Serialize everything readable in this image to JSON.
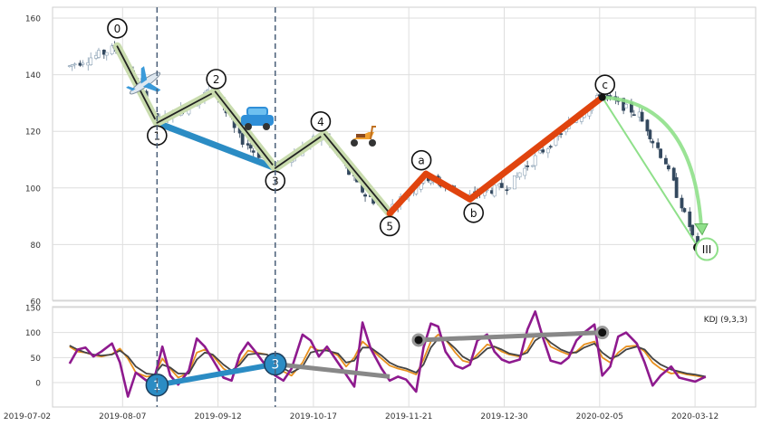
{
  "chart_data": [
    {
      "type": "candlestick",
      "title": "",
      "xlabel": "",
      "ylabel": "",
      "ylim": [
        60,
        165
      ],
      "y_ticks": [
        "60",
        "80",
        "100",
        "120",
        "140",
        "160"
      ],
      "grid": true,
      "legend": "none",
      "candles_approx": [
        {
          "date": "2019-07-18",
          "close": 143
        },
        {
          "date": "2019-08-01",
          "close": 148
        },
        {
          "date": "2019-08-05",
          "close": 150
        },
        {
          "date": "2019-08-12",
          "close": 138
        },
        {
          "date": "2019-08-20",
          "close": 123
        },
        {
          "date": "2019-09-03",
          "close": 130
        },
        {
          "date": "2019-09-11",
          "close": 136
        },
        {
          "date": "2019-09-20",
          "close": 118
        },
        {
          "date": "2019-10-03",
          "close": 107
        },
        {
          "date": "2019-10-15",
          "close": 115
        },
        {
          "date": "2019-10-21",
          "close": 119
        },
        {
          "date": "2019-11-05",
          "close": 98
        },
        {
          "date": "2019-11-14",
          "close": 92
        },
        {
          "date": "2019-11-28",
          "close": 104
        },
        {
          "date": "2019-12-16",
          "close": 97
        },
        {
          "date": "2020-01-01",
          "close": 101
        },
        {
          "date": "2020-01-20",
          "close": 118
        },
        {
          "date": "2020-02-06",
          "close": 133
        },
        {
          "date": "2020-02-20",
          "close": 126
        },
        {
          "date": "2020-03-01",
          "close": 110
        },
        {
          "date": "2020-03-13",
          "close": 79
        }
      ],
      "wave_points": [
        {
          "label": "0",
          "date": "2019-08-05",
          "price": 150
        },
        {
          "label": "1",
          "date": "2019-08-20",
          "price": 123
        },
        {
          "label": "2",
          "date": "2019-09-11",
          "price": 134
        },
        {
          "label": "3",
          "date": "2019-10-03",
          "price": 107
        },
        {
          "label": "4",
          "date": "2019-10-21",
          "price": 119
        },
        {
          "label": "5",
          "date": "2019-11-14",
          "price": 91
        },
        {
          "label": "a",
          "date": "2019-11-28",
          "price": 105
        },
        {
          "label": "b",
          "date": "2019-12-16",
          "price": 96
        },
        {
          "label": "c",
          "date": "2020-02-06",
          "price": 132
        },
        {
          "label": "III",
          "date": "2020-03-13",
          "price": 79
        }
      ],
      "divergence_line": {
        "from": {
          "date": "2019-08-20",
          "price": 123
        },
        "to": {
          "date": "2019-10-03",
          "price": 107
        },
        "color": "#2b8cc4"
      },
      "abc_color": "#e0440e",
      "arrow_color": "#8fe08a",
      "vlines": [
        "2019-08-20",
        "2019-10-03"
      ]
    },
    {
      "type": "line",
      "indicator_label": "KDJ (9,3,3)",
      "ylim": [
        -30,
        150
      ],
      "y_ticks": [
        "0",
        "50",
        "100",
        "150"
      ],
      "grid": true,
      "series": [
        {
          "color": "#e8901e",
          "values": [
            72,
            62,
            60,
            55,
            52,
            57,
            68,
            48,
            20,
            12,
            14,
            48,
            28,
            10,
            20,
            60,
            66,
            54,
            28,
            18,
            42,
            64,
            60,
            56,
            32,
            22,
            14,
            40,
            72,
            64,
            66,
            54,
            32,
            50,
            82,
            68,
            48,
            34,
            28,
            24,
            16,
            46,
            82,
            96,
            86,
            60,
            44,
            40,
            56,
            76,
            72,
            62,
            56,
            52,
            66,
            96,
            98,
            72,
            62,
            56,
            62,
            76,
            82,
            50,
            40,
            60,
            72,
            74,
            62,
            40,
            28,
            18,
            20,
            16,
            14,
            10
          ]
        },
        {
          "color": "#444444",
          "values": [
            74,
            66,
            60,
            56,
            54,
            56,
            64,
            52,
            32,
            18,
            16,
            36,
            30,
            18,
            18,
            46,
            60,
            56,
            36,
            24,
            36,
            56,
            58,
            56,
            40,
            28,
            20,
            32,
            60,
            64,
            64,
            58,
            40,
            44,
            70,
            70,
            54,
            40,
            32,
            28,
            20,
            36,
            70,
            88,
            86,
            68,
            52,
            44,
            50,
            68,
            72,
            66,
            58,
            54,
            60,
            84,
            94,
            80,
            66,
            60,
            60,
            70,
            78,
            60,
            48,
            54,
            66,
            72,
            66,
            48,
            36,
            26,
            22,
            18,
            16,
            12
          ]
        },
        {
          "color": "#8e1a8e",
          "values": [
            38,
            66,
            70,
            52,
            62,
            78,
            40,
            -28,
            20,
            4,
            8,
            72,
            14,
            -4,
            24,
            88,
            72,
            46,
            10,
            4,
            56,
            80,
            60,
            30,
            14,
            4,
            28,
            96,
            84,
            52,
            72,
            40,
            16,
            -8,
            120,
            68,
            28,
            4,
            12,
            6,
            -18,
            70,
            118,
            112,
            62,
            34,
            28,
            36,
            84,
            96,
            62,
            46,
            40,
            46,
            106,
            142,
            90,
            44,
            38,
            50,
            84,
            100,
            116,
            14,
            32,
            92,
            100,
            78,
            40,
            -6,
            14,
            32,
            10,
            6,
            2,
            12
          ]
        }
      ],
      "points": [
        {
          "label": "1",
          "date": "2019-08-20",
          "value": -5,
          "color": "#2b8cc4"
        },
        {
          "label": "3",
          "date": "2019-10-03",
          "value": 37,
          "color": "#2b8cc4"
        },
        {
          "label": "",
          "date": "2019-11-25",
          "value": 85,
          "color": "#888888"
        },
        {
          "label": "",
          "date": "2020-02-06",
          "value": 100,
          "color": "#888888"
        }
      ],
      "x_ticks": [
        "2019-07-02",
        "2019-08-07",
        "2019-09-12",
        "2019-10-17",
        "2019-11-21",
        "2019-12-30",
        "2020-02-05",
        "2020-03-12"
      ]
    }
  ]
}
